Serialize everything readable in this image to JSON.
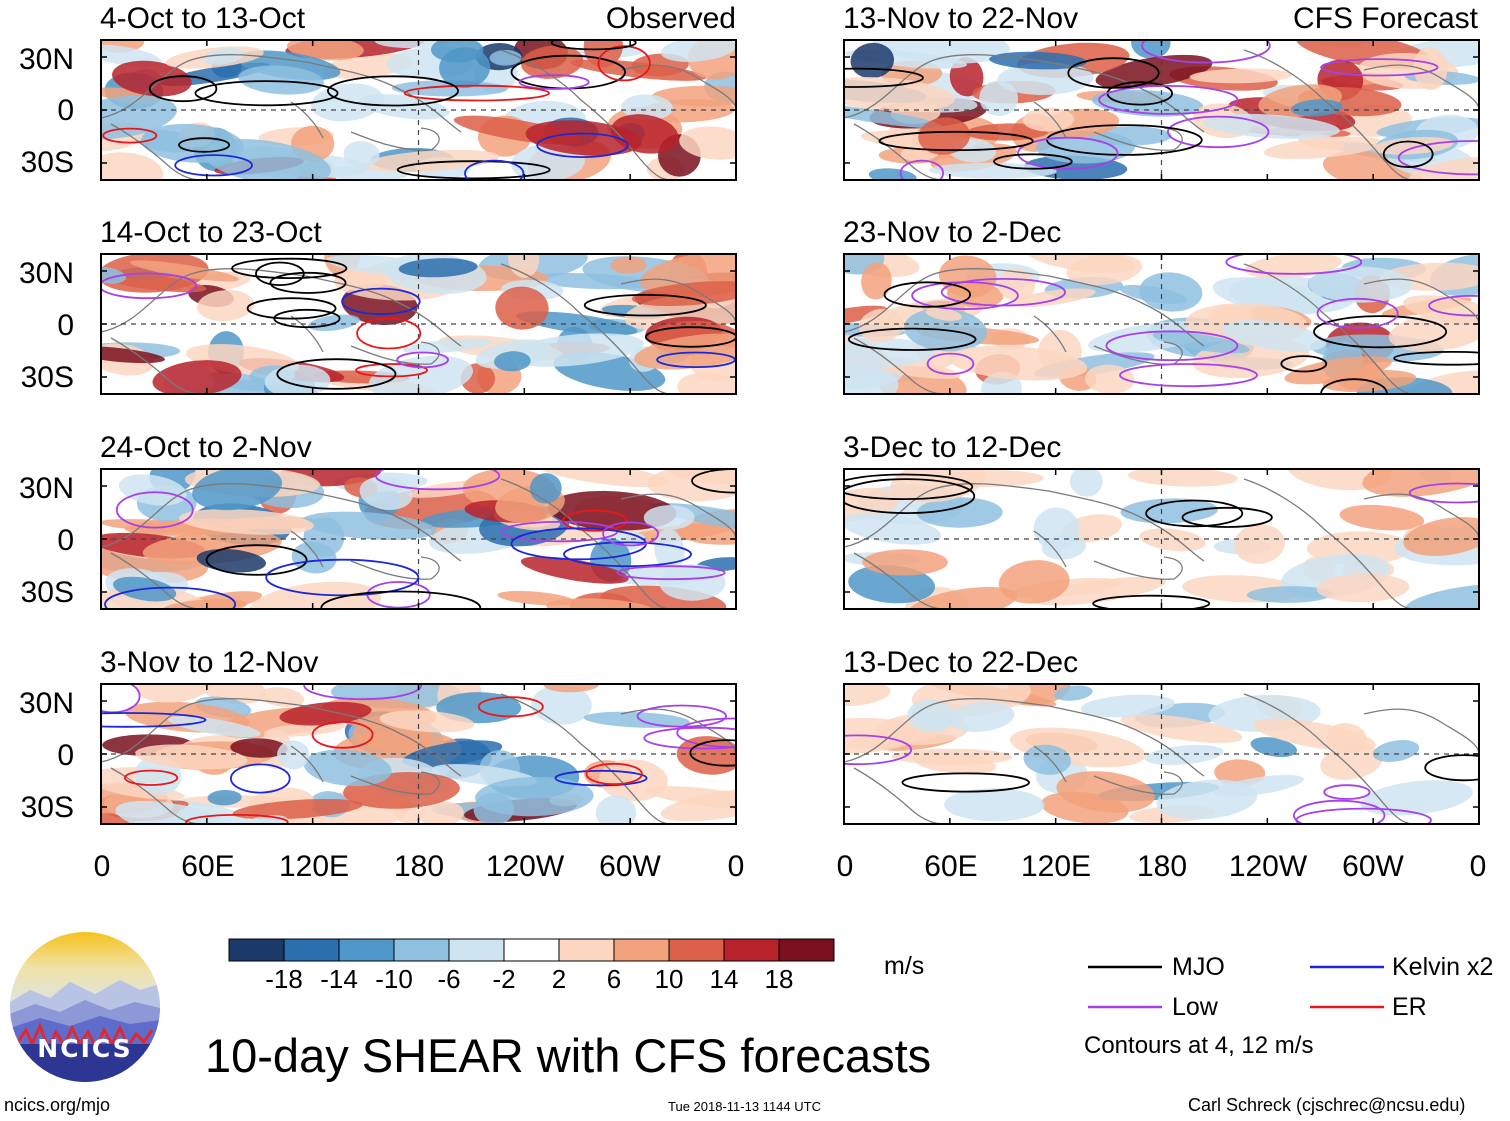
{
  "chart_data": {
    "type": "heatmap",
    "title": "10-day SHEAR with CFS forecasts",
    "units": "m/s",
    "lat_labels": [
      "30N",
      "0",
      "30S"
    ],
    "lon_labels": [
      "0",
      "60E",
      "120E",
      "180",
      "120W",
      "60W",
      "0"
    ],
    "columns": [
      {
        "label": "Observed",
        "panels": [
          "4-Oct to 13-Oct",
          "14-Oct to 23-Oct",
          "24-Oct to 2-Nov",
          "3-Nov to 12-Nov"
        ]
      },
      {
        "label": "CFS Forecast",
        "panels": [
          "13-Nov to 22-Nov",
          "23-Nov to 2-Dec",
          "3-Dec to 12-Dec",
          "13-Dec to 22-Dec"
        ]
      }
    ],
    "colorbar": {
      "labels": [
        "-18",
        "-14",
        "-10",
        "-6",
        "-2",
        "2",
        "6",
        "10",
        "14",
        "18"
      ],
      "colors": [
        "#1b3a6b",
        "#2c6fae",
        "#4f97c8",
        "#8ec0df",
        "#cfe4f1",
        "#ffffff",
        "#fcd6c1",
        "#f2a27c",
        "#dc5f48",
        "#b8222b",
        "#7a0f1e"
      ]
    },
    "legend": [
      {
        "label": "MJO",
        "color": "#000000"
      },
      {
        "label": "Kelvin x2",
        "color": "#1a28d8"
      },
      {
        "label": "Low",
        "color": "#a640e8"
      },
      {
        "label": "ER",
        "color": "#e8171b"
      }
    ],
    "contour_note": "Contours at 4, 12 m/s"
  },
  "footer": {
    "logo_text": "NCICS",
    "url": "ncics.org/mjo",
    "timestamp": "Tue 2018-11-13 1144 UTC",
    "author": "Carl Schreck (cjschrec@ncsu.edu)"
  }
}
